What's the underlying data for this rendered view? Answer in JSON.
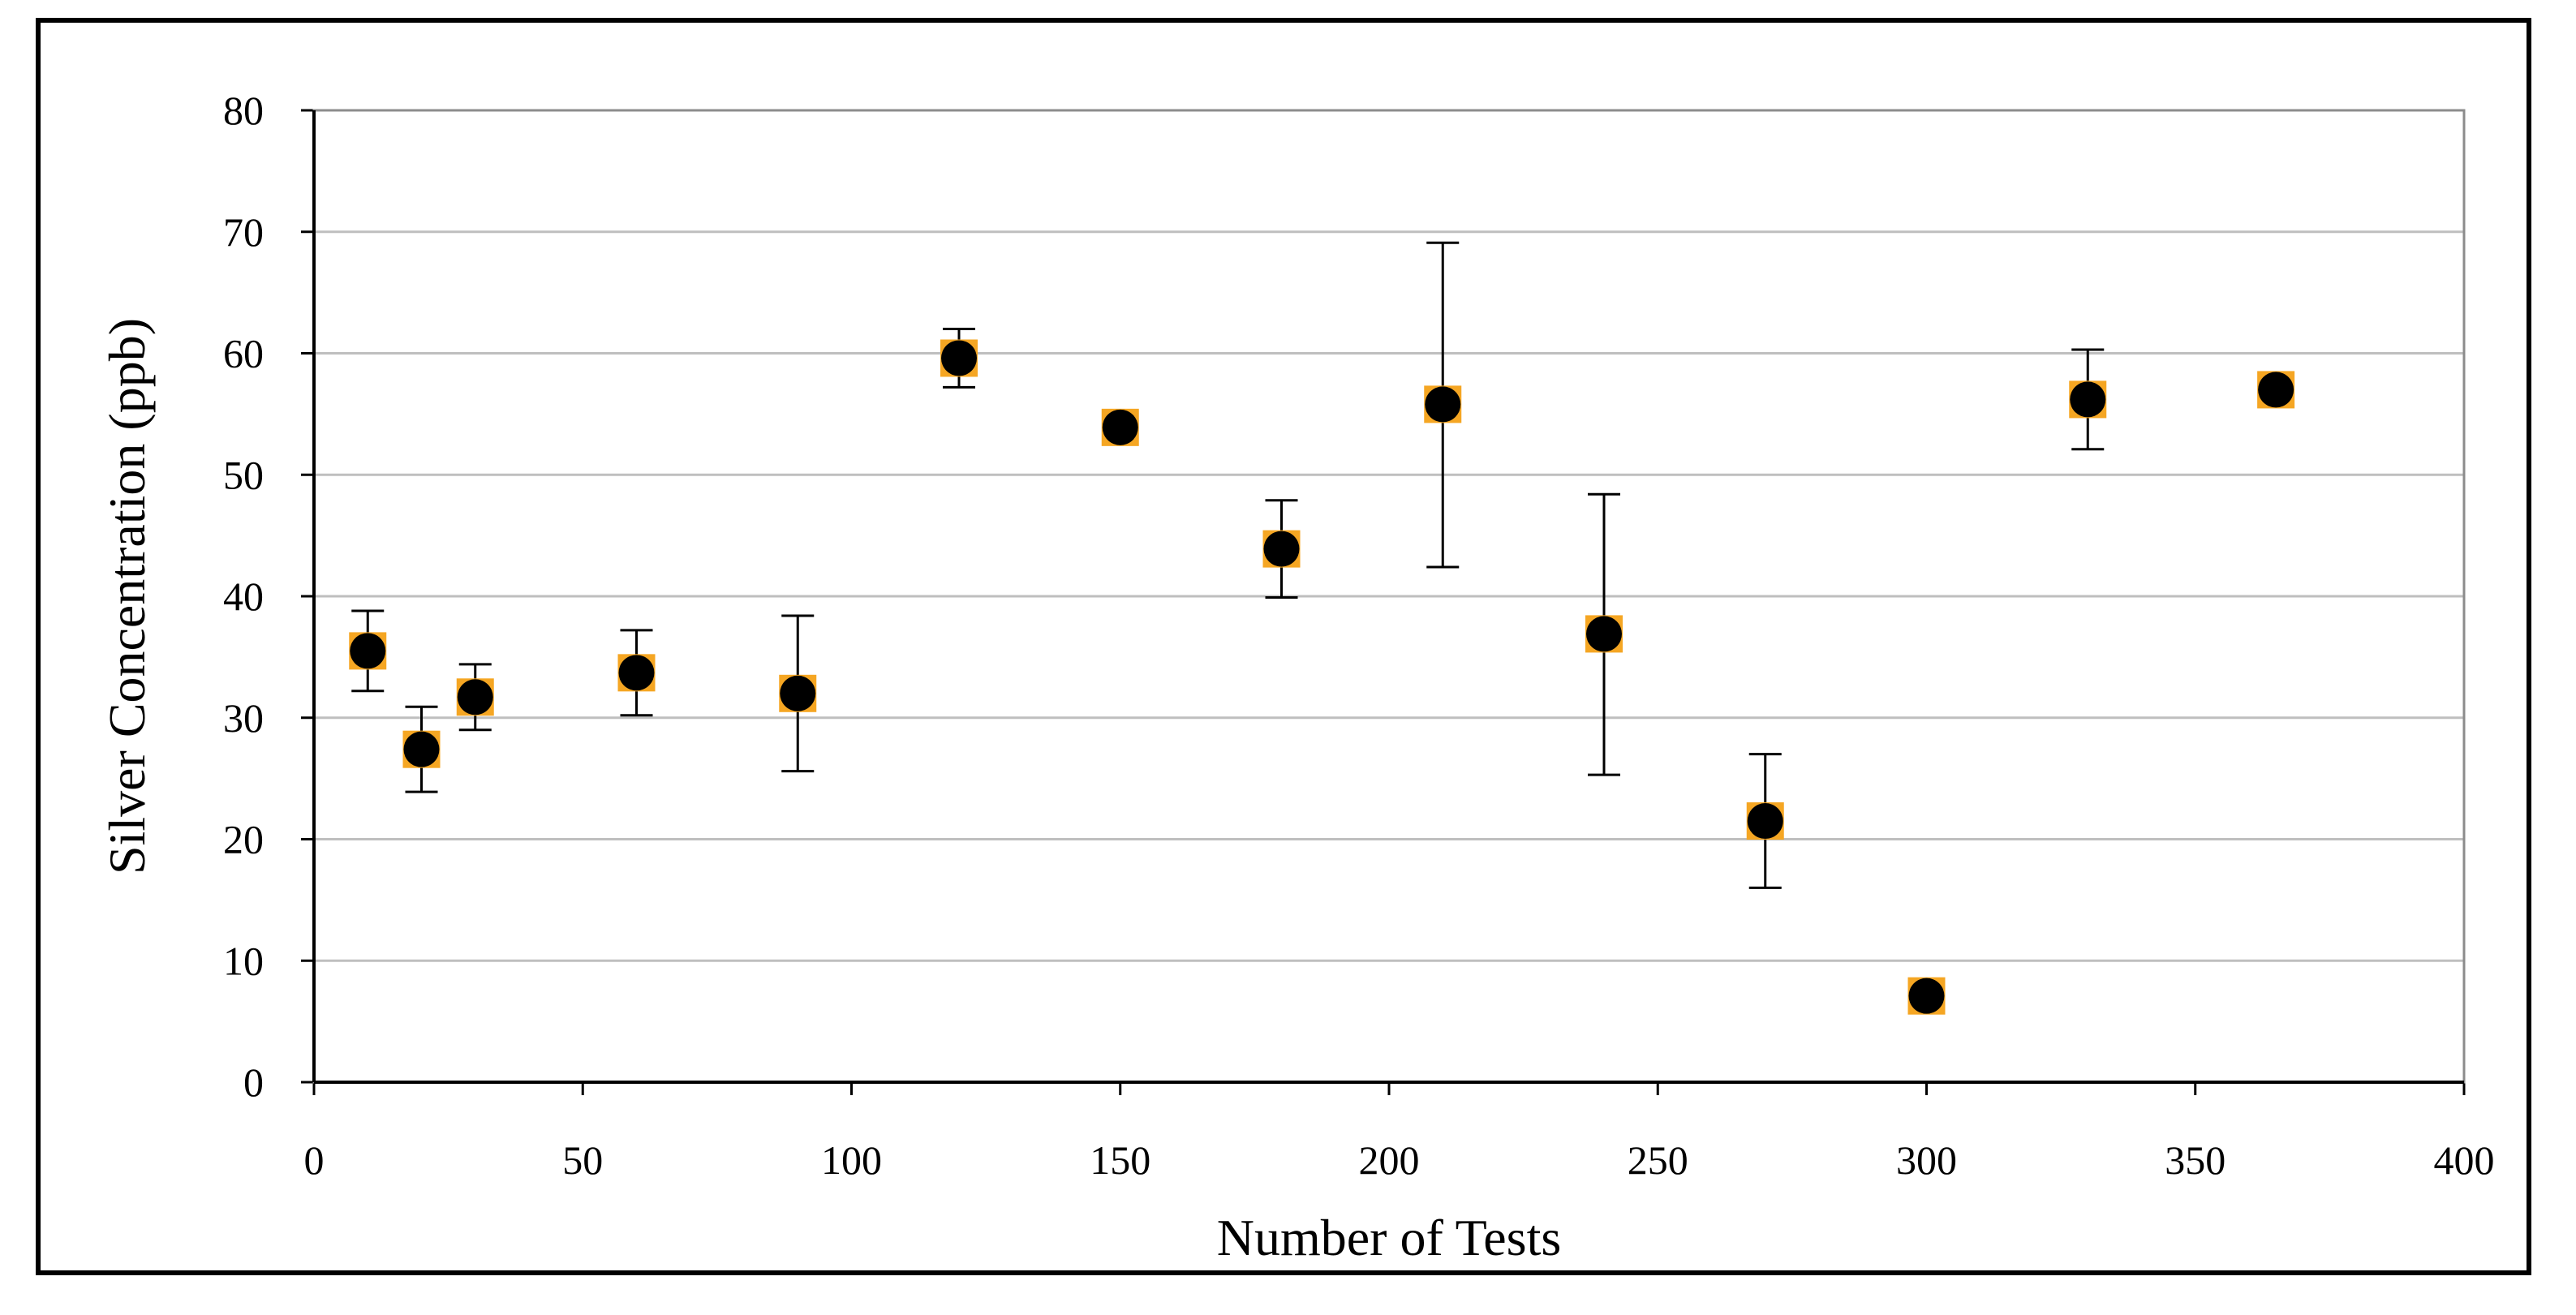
{
  "chart_data": {
    "type": "scatter",
    "title": "",
    "xlabel": "Number of Tests",
    "ylabel": "Silver Concentration (ppb)",
    "xlim": [
      0,
      400
    ],
    "ylim": [
      0,
      80
    ],
    "x_ticks": [
      0,
      50,
      100,
      150,
      200,
      250,
      300,
      350,
      400
    ],
    "y_ticks": [
      0,
      10,
      20,
      30,
      40,
      50,
      60,
      70,
      80
    ],
    "grid": "horizontal",
    "legend": "none",
    "colors": {
      "marker_fill": "#000000",
      "marker_square": "#F5A623",
      "error_bar": "#000000",
      "grid": "#bfbfbf",
      "axis": "#000000"
    },
    "series": [
      {
        "points": [
          {
            "x": 10,
            "y": 35.5,
            "err_low": 32.2,
            "err_high": 38.8
          },
          {
            "x": 20,
            "y": 27.4,
            "err_low": 23.9,
            "err_high": 30.9
          },
          {
            "x": 30,
            "y": 31.7,
            "err_low": 29.0,
            "err_high": 34.4
          },
          {
            "x": 60,
            "y": 33.7,
            "err_low": 30.2,
            "err_high": 37.2
          },
          {
            "x": 90,
            "y": 32.0,
            "err_low": 25.6,
            "err_high": 38.4
          },
          {
            "x": 120,
            "y": 59.6,
            "err_low": 57.2,
            "err_high": 62.0
          },
          {
            "x": 150,
            "y": 53.9,
            "err_low": 53.9,
            "err_high": 53.9
          },
          {
            "x": 180,
            "y": 43.9,
            "err_low": 39.9,
            "err_high": 47.9
          },
          {
            "x": 210,
            "y": 55.8,
            "err_low": 42.4,
            "err_high": 69.1
          },
          {
            "x": 240,
            "y": 36.9,
            "err_low": 25.3,
            "err_high": 48.4
          },
          {
            "x": 270,
            "y": 21.5,
            "err_low": 16.0,
            "err_high": 27.0
          },
          {
            "x": 300,
            "y": 7.1,
            "err_low": 7.1,
            "err_high": 7.1
          },
          {
            "x": 330,
            "y": 56.2,
            "err_low": 52.1,
            "err_high": 60.3
          },
          {
            "x": 365,
            "y": 57.0,
            "err_low": 57.0,
            "err_high": 57.0
          }
        ]
      }
    ]
  }
}
